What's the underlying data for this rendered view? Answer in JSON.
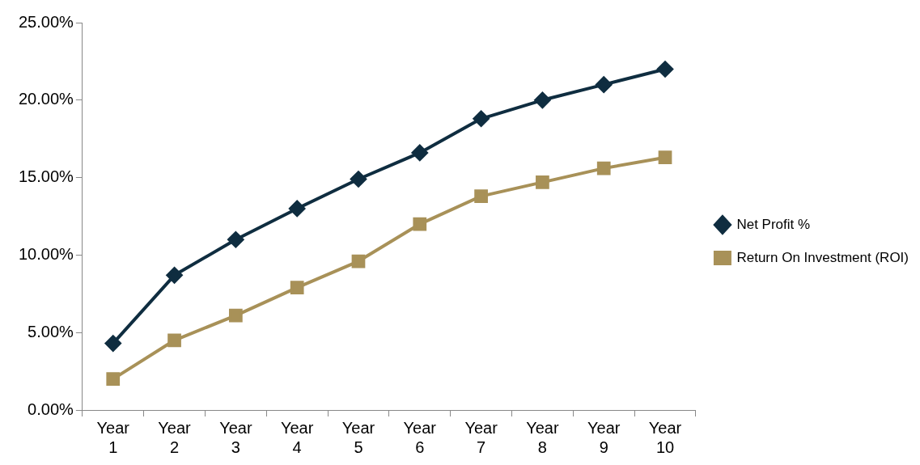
{
  "chart_data": {
    "type": "line",
    "categories": [
      "Year 1",
      "Year 2",
      "Year 3",
      "Year 4",
      "Year 5",
      "Year 6",
      "Year 7",
      "Year 8",
      "Year 9",
      "Year 10"
    ],
    "series": [
      {
        "name": "Net Profit %",
        "color": "#0f2d40",
        "marker": "diamond",
        "values": [
          4.3,
          8.7,
          11.0,
          13.0,
          14.9,
          16.6,
          18.8,
          20.0,
          21.0,
          22.0
        ]
      },
      {
        "name": "Return On Investment (ROI)",
        "color": "#a89158",
        "marker": "square",
        "values": [
          2.0,
          4.5,
          6.1,
          7.9,
          9.6,
          12.0,
          13.8,
          14.7,
          15.6,
          16.3
        ]
      }
    ],
    "ylim": [
      0,
      25
    ],
    "yticks": [
      {
        "value": 0,
        "label": "0.00%"
      },
      {
        "value": 5,
        "label": "5.00%"
      },
      {
        "value": 10,
        "label": "10.00%"
      },
      {
        "value": 15,
        "label": "15.00%"
      },
      {
        "value": 20,
        "label": "20.00%"
      },
      {
        "value": 25,
        "label": "25.00%"
      }
    ],
    "grid": false,
    "legend": "right",
    "line_style": "solid"
  }
}
